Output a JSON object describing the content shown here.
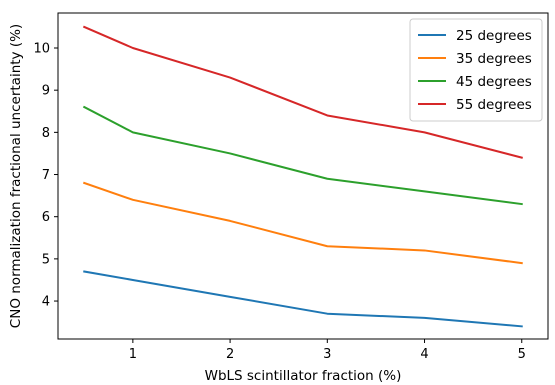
{
  "chart_data": {
    "type": "line",
    "title": "",
    "xlabel": "WbLS scintillator fraction (%)",
    "ylabel": "CNO normalization fractional uncertainty (%)",
    "x": [
      0.5,
      1,
      2,
      3,
      4,
      5
    ],
    "xlim": [
      0.23,
      5.27
    ],
    "ylim": [
      3.1,
      10.83
    ],
    "xticks": [
      1,
      2,
      3,
      4,
      5
    ],
    "yticks": [
      4,
      5,
      6,
      7,
      8,
      9,
      10
    ],
    "grid": false,
    "legend_position": "top-right",
    "series": [
      {
        "name": "25 degrees",
        "color": "#1f77b4",
        "values": [
          4.7,
          4.5,
          4.1,
          3.7,
          3.6,
          3.4
        ]
      },
      {
        "name": "35 degrees",
        "color": "#ff7f0e",
        "values": [
          6.8,
          6.4,
          5.9,
          5.3,
          5.2,
          4.9
        ]
      },
      {
        "name": "45 degrees",
        "color": "#2ca02c",
        "values": [
          8.6,
          8.0,
          7.5,
          6.9,
          6.6,
          6.3
        ]
      },
      {
        "name": "55 degrees",
        "color": "#d62728",
        "values": [
          10.5,
          10.0,
          9.3,
          8.4,
          8.0,
          7.4
        ]
      }
    ]
  }
}
